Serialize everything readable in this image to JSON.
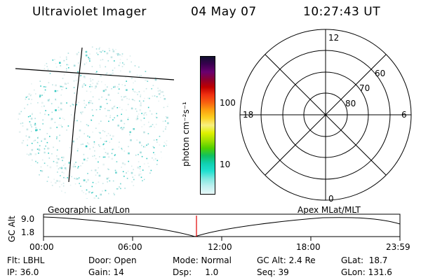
{
  "header": {
    "instrument": "Ultraviolet Imager",
    "date": "04 May 07",
    "time": "10:27:43 UT"
  },
  "colorbar": {
    "unit_label": "photon cm⁻²s⁻¹",
    "ticks": [
      "100",
      "10"
    ],
    "colors": [
      "#101030",
      "#3a0050",
      "#6a0070",
      "#8c0030",
      "#c00000",
      "#f03010",
      "#f86010",
      "#fca010",
      "#fcd020",
      "#f8f080",
      "#e0f000",
      "#a0e000",
      "#50d000",
      "#10c060",
      "#10d0b0",
      "#20e0d0",
      "#80e8e0",
      "#c0f0f0",
      "#e8f8f8"
    ]
  },
  "polar_plot": {
    "labels_mlt": [
      "12",
      "18",
      "6",
      "0"
    ],
    "labels_lat": [
      "60",
      "70",
      "80"
    ]
  },
  "orbit_strip": {
    "left_label": "Geographic Lat/Lon",
    "right_label": "Apex MLat/MLT",
    "axis_label": "GC Alt",
    "y_ticks": [
      "9.0",
      "1.8"
    ],
    "x_ticks": [
      "00:00",
      "06:00",
      "12:00",
      "18:00",
      "23:59"
    ],
    "marker_color": "#e00000"
  },
  "status": {
    "flt": "Flt: LBHL",
    "ip": "IP: 36.0",
    "door": "Door: Open",
    "gain": "Gain: 14",
    "mode": "Mode: Normal",
    "dsp": "Dsp:     1.0",
    "gcalt": "GC Alt: 2.4 Re",
    "seq": "Seq: 39",
    "glat": "GLat:  18.7",
    "glon": "GLon: 131.6"
  }
}
